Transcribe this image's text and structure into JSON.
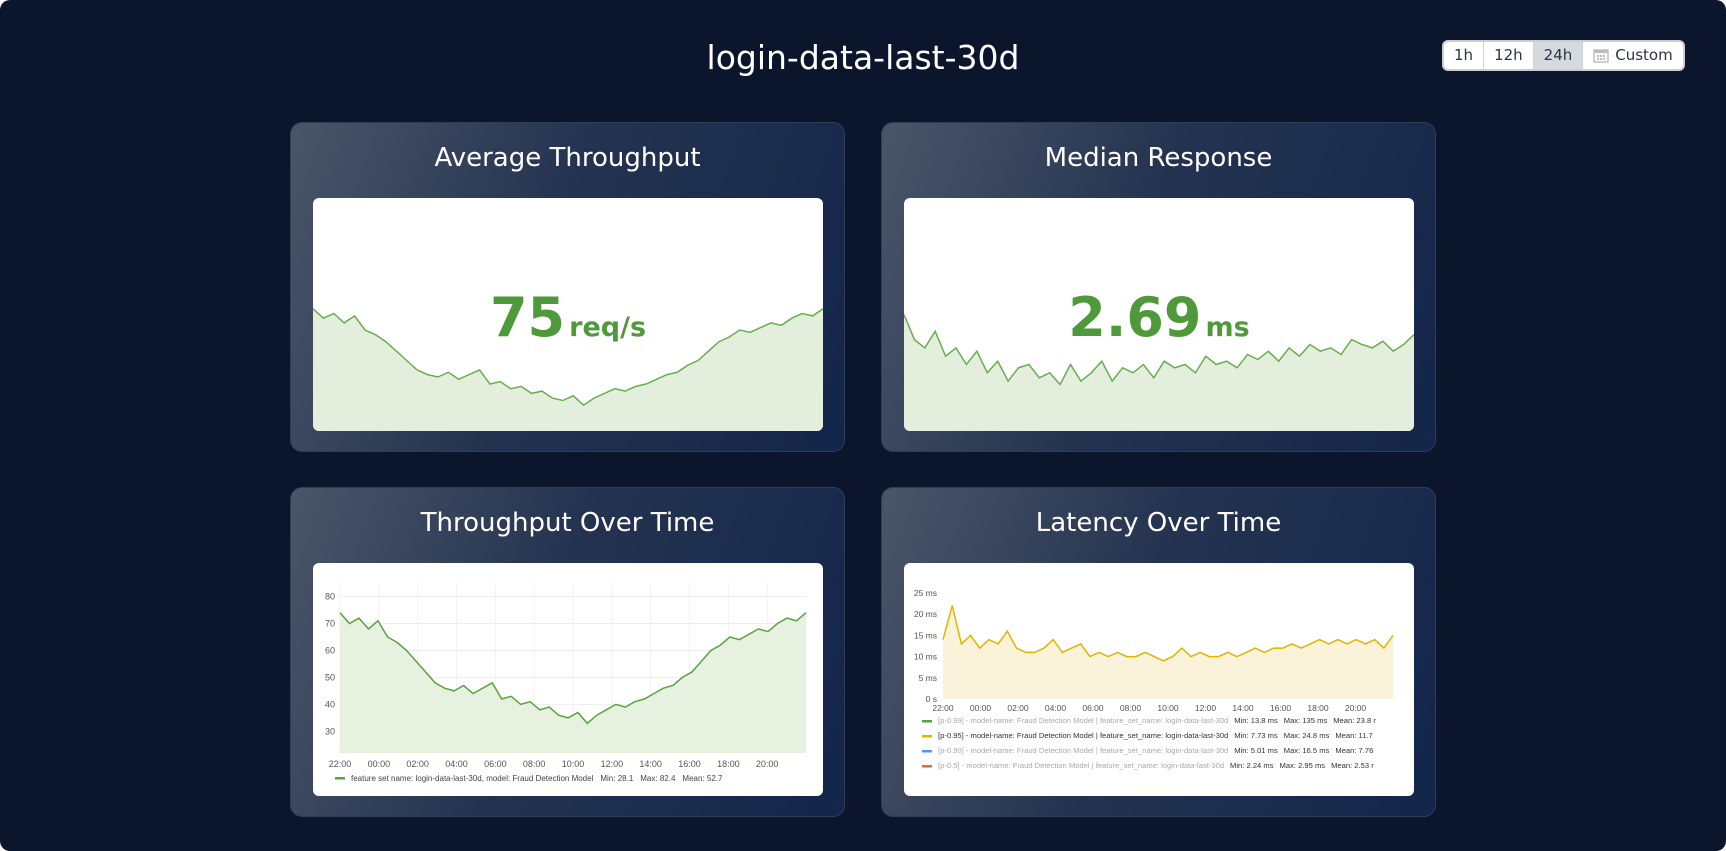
{
  "header": {
    "title": "login-data-last-30d"
  },
  "time_range": {
    "options": [
      "1h",
      "12h",
      "24h",
      "Custom"
    ],
    "selected": "24h",
    "custom_icon": "calendar-icon"
  },
  "colors": {
    "green": "#5aa33f",
    "yellow": "#e0b400",
    "blue": "#5794f2",
    "orange": "#f2661d",
    "bg": "#0b152b"
  },
  "panels": {
    "avg_throughput": {
      "title": "Average Throughput",
      "value": "75",
      "unit": "req/s",
      "sparkline": [
        74,
        70,
        72,
        68,
        71,
        65,
        63,
        60,
        56,
        52,
        48,
        46,
        45,
        47,
        44,
        46,
        48,
        42,
        43,
        40,
        41,
        38,
        39,
        36,
        35,
        37,
        33,
        36,
        38,
        40,
        39,
        41,
        42,
        44,
        46,
        47,
        50,
        52,
        56,
        60,
        62,
        65,
        64,
        66,
        68,
        67,
        70,
        72,
        71,
        74
      ]
    },
    "median_response": {
      "title": "Median Response",
      "value": "2.69",
      "unit": "ms",
      "sparkline": [
        2.9,
        2.75,
        2.7,
        2.8,
        2.65,
        2.7,
        2.6,
        2.68,
        2.55,
        2.62,
        2.5,
        2.58,
        2.6,
        2.52,
        2.55,
        2.48,
        2.6,
        2.5,
        2.55,
        2.62,
        2.5,
        2.58,
        2.55,
        2.6,
        2.52,
        2.62,
        2.58,
        2.6,
        2.55,
        2.65,
        2.6,
        2.62,
        2.58,
        2.66,
        2.63,
        2.68,
        2.62,
        2.7,
        2.65,
        2.72,
        2.68,
        2.7,
        2.66,
        2.75,
        2.72,
        2.7,
        2.74,
        2.68,
        2.72,
        2.78
      ]
    },
    "throughput_over_time": {
      "title": "Throughput Over Time"
    },
    "latency_over_time": {
      "title": "Latency Over Time"
    }
  },
  "chart_data": [
    {
      "type": "area",
      "x_ticks": [
        "22:00",
        "00:00",
        "02:00",
        "04:00",
        "06:00",
        "08:00",
        "10:00",
        "12:00",
        "14:00",
        "16:00",
        "18:00",
        "20:00"
      ],
      "y_ticks": [
        "30",
        "40",
        "50",
        "60",
        "70",
        "80"
      ],
      "ylim": [
        22,
        85
      ],
      "grid": true,
      "series": [
        {
          "name": "feature set name: login-data-last-30d, model: Fraud Detection Model",
          "min": "Min: 28.1",
          "max": "Max: 82.4",
          "mean": "Mean: 52.7",
          "color": "#5aa33f",
          "values": [
            74,
            70,
            72,
            68,
            71,
            65,
            63,
            60,
            56,
            52,
            48,
            46,
            45,
            47,
            44,
            46,
            48,
            42,
            43,
            40,
            41,
            38,
            39,
            36,
            35,
            37,
            33,
            36,
            38,
            40,
            39,
            41,
            42,
            44,
            46,
            47,
            50,
            52,
            56,
            60,
            62,
            65,
            64,
            66,
            68,
            67,
            70,
            72,
            71,
            74
          ]
        }
      ]
    },
    {
      "type": "area",
      "x_ticks": [
        "22:00",
        "00:00",
        "02:00",
        "04:00",
        "06:00",
        "08:00",
        "10:00",
        "12:00",
        "14:00",
        "16:00",
        "18:00",
        "20:00"
      ],
      "y_ticks": [
        "0 s",
        "5 ms",
        "10 ms",
        "15 ms",
        "20 ms",
        "25 ms"
      ],
      "ylim": [
        0,
        25
      ],
      "grid": false,
      "series": [
        {
          "name": "[p-0.99] - model-name: Fraud Detection Model | feature_set_name: login-data-last-30d",
          "min": "Min: 13.8 ms",
          "max": "Max: 135 ms",
          "mean": "Mean: 23.8 r",
          "color": "#5aa33f",
          "hidden": true
        },
        {
          "name": "[p-0.95] - model-name: Fraud Detection Model | feature_set_name: login-data-last-30d",
          "min": "Min: 7.73 ms",
          "max": "Max: 24.8 ms",
          "mean": "Mean: 11.7",
          "color": "#e0b400",
          "values": [
            14,
            22,
            13,
            15,
            12,
            14,
            13,
            16,
            12,
            11,
            11,
            12,
            14,
            11,
            12,
            13,
            10,
            11,
            10,
            11,
            10,
            10,
            11,
            10,
            9,
            10,
            12,
            10,
            11,
            10,
            10,
            11,
            10,
            11,
            12,
            11,
            12,
            12,
            13,
            12,
            13,
            14,
            13,
            14,
            13,
            14,
            13,
            14,
            12,
            15
          ]
        },
        {
          "name": "[p-0.90] - model-name: Fraud Detection Model | feature_set_name: login-data-last-30d",
          "min": "Min: 5.01 ms",
          "max": "Max: 16.5 ms",
          "mean": "Mean: 7.76",
          "color": "#5794f2",
          "hidden": true
        },
        {
          "name": "[p-0.5] - model-name: Fraud Detection Model | feature_set_name: login-data-last-30d",
          "min": "Min: 2.24 ms",
          "max": "Max: 2.95 ms",
          "mean": "Mean: 2.53 r",
          "color": "#f2661d",
          "hidden": true
        }
      ]
    }
  ]
}
